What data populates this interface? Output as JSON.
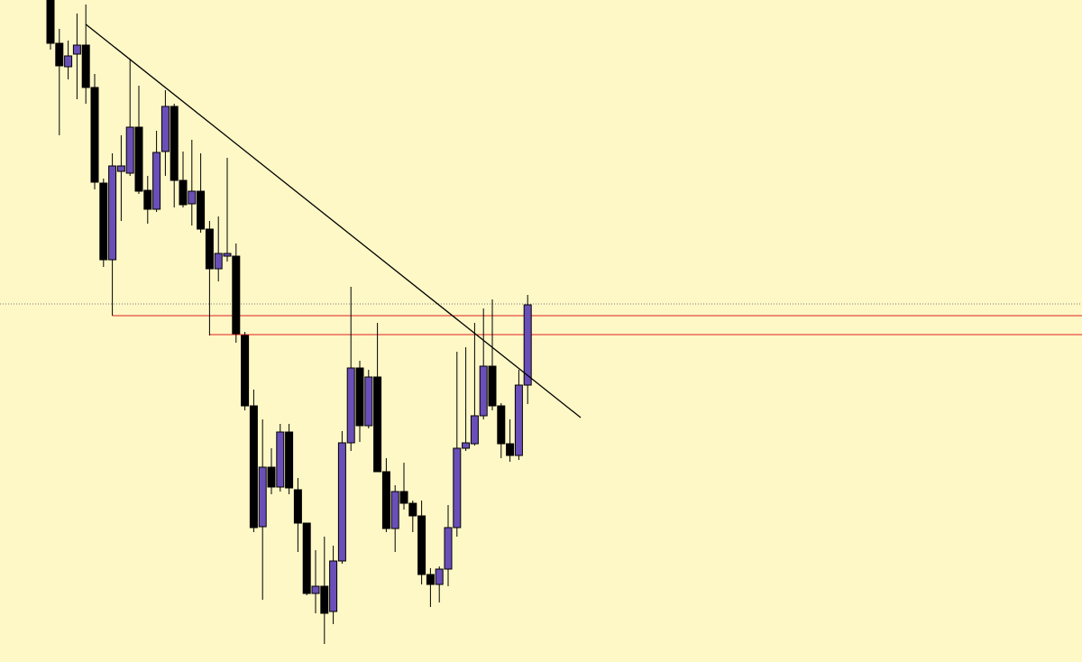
{
  "chart_data": {
    "type": "candlestick",
    "categories": [
      null,
      null,
      null,
      null,
      null,
      null,
      null,
      null,
      null,
      null,
      null,
      null,
      null,
      null,
      null,
      null,
      null,
      null,
      null,
      null,
      null,
      null,
      null,
      null,
      null,
      null,
      null,
      null,
      null,
      null,
      null,
      null,
      null,
      null,
      null,
      null,
      null,
      null,
      null,
      null,
      null,
      null,
      null,
      null,
      null,
      null,
      null,
      null,
      null,
      null,
      null,
      null,
      null,
      null,
      null
    ],
    "open": [
      734,
      686,
      660,
      674,
      684,
      637,
      531,
      446,
      544,
      542,
      593,
      523,
      502,
      566,
      616,
      534,
      508,
      522,
      480,
      436,
      450,
      450,
      362,
      284,
      150,
      216,
      194,
      255,
      191,
      154,
      76,
      84,
      56,
      112,
      243,
      326,
      262,
      316,
      211,
      148,
      189,
      176,
      162,
      97,
      86,
      103,
      149,
      237,
      242,
      273,
      328,
      284,
      242,
      229,
      307
    ],
    "high": [
      734,
      702,
      689,
      719,
      729,
      652,
      536,
      564,
      584,
      669,
      639,
      539,
      589,
      634,
      619,
      566,
      579,
      564,
      489,
      494,
      559,
      464,
      366,
      302,
      269,
      237,
      264,
      264,
      204,
      154,
      124,
      139,
      129,
      256,
      416,
      334,
      324,
      376,
      226,
      196,
      221,
      179,
      179,
      104,
      106,
      174,
      344,
      349,
      376,
      392,
      402,
      287,
      269,
      324,
      407
    ],
    "low": [
      679,
      584,
      646,
      624,
      619,
      524,
      438,
      384,
      489,
      539,
      519,
      486,
      499,
      539,
      504,
      504,
      484,
      476,
      362,
      422,
      444,
      354,
      279,
      144,
      69,
      186,
      189,
      186,
      122,
      74,
      54,
      20,
      42,
      109,
      234,
      244,
      259,
      211,
      144,
      122,
      169,
      144,
      86,
      61,
      66,
      84,
      139,
      234,
      240,
      269,
      279,
      226,
      222,
      224,
      286
    ],
    "close": [
      686,
      661,
      672,
      684,
      637,
      532,
      446,
      550,
      550,
      593,
      522,
      502,
      565,
      616,
      534,
      507,
      522,
      480,
      436,
      453,
      453,
      364,
      284,
      149,
      216,
      194,
      255,
      193,
      154,
      76,
      84,
      54,
      112,
      243,
      326,
      262,
      316,
      211,
      148,
      189,
      176,
      162,
      97,
      86,
      103,
      149,
      237,
      243,
      273,
      328,
      284,
      242,
      229,
      307,
      396
    ],
    "up_color": "#6a4fb8",
    "down_color": "#000000",
    "ylim": [
      0,
      734
    ],
    "trendline": {
      "x": [
        4,
        60
      ],
      "values": [
        707,
        271
      ],
      "color": "#000000"
    },
    "levels": [
      {
        "start": 7,
        "value": 384,
        "color": "#e02020"
      },
      {
        "start": 18,
        "value": 363,
        "color": "#e02020"
      }
    ],
    "price_line": {
      "value": 397,
      "color": "#777777"
    }
  }
}
